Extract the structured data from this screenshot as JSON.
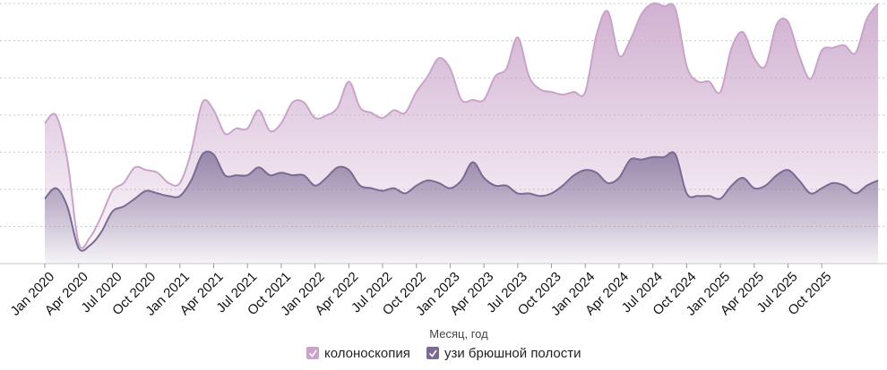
{
  "chart_data": {
    "type": "area",
    "title": "",
    "xlabel": "Месяц, год",
    "ylabel": "",
    "ylim": [
      0,
      100
    ],
    "grid": true,
    "legend_position": "bottom",
    "x_ticks": [
      "Jan 2020",
      "Apr 2020",
      "Jul 2020",
      "Oct 2020",
      "Jan 2021",
      "Apr 2021",
      "Jul 2021",
      "Oct 2021",
      "Jan 2022",
      "Apr 2022",
      "Jul 2022",
      "Oct 2022",
      "Jan 2023",
      "Apr 2023",
      "Jul 2023",
      "Oct 2023",
      "Jan 2024",
      "Apr 2024",
      "Jul 2024",
      "Oct 2024",
      "Jan 2025",
      "Apr 2025",
      "Jul 2025",
      "Oct 2025"
    ],
    "series": [
      {
        "name": "колоноскопия",
        "color": "#c9a3c9",
        "values": [
          54,
          57,
          40,
          8,
          10,
          18,
          28,
          31,
          37,
          36,
          35,
          31,
          31,
          43,
          62,
          59,
          50,
          52,
          52,
          59,
          51,
          54,
          62,
          62,
          56,
          57,
          60,
          70,
          60,
          58,
          56,
          59,
          58,
          66,
          72,
          79,
          75,
          63,
          63,
          63,
          72,
          75,
          87,
          72,
          67,
          66,
          65,
          66,
          66,
          88,
          97,
          80,
          86,
          96,
          100,
          99,
          98,
          76,
          70,
          70,
          66,
          83,
          89,
          79,
          76,
          92,
          93,
          80,
          71,
          82,
          83,
          84,
          81,
          94,
          100
        ]
      },
      {
        "name": "узи брюшной полости",
        "color": "#7a6a94",
        "values": [
          25,
          29,
          22,
          6,
          7,
          12,
          20,
          22,
          25,
          28,
          27,
          26,
          26,
          32,
          42,
          42,
          34,
          34,
          34,
          37,
          34,
          35,
          34,
          34,
          30,
          33,
          37,
          36,
          30,
          29,
          28,
          29,
          27,
          30,
          32,
          31,
          29,
          32,
          39,
          33,
          30,
          30,
          27,
          27,
          26,
          27,
          30,
          34,
          36,
          35,
          31,
          33,
          40,
          40,
          41,
          41,
          42,
          27,
          26,
          26,
          25,
          30,
          33,
          29,
          30,
          34,
          36,
          32,
          27,
          29,
          31,
          30,
          27,
          30,
          32
        ]
      }
    ]
  }
}
